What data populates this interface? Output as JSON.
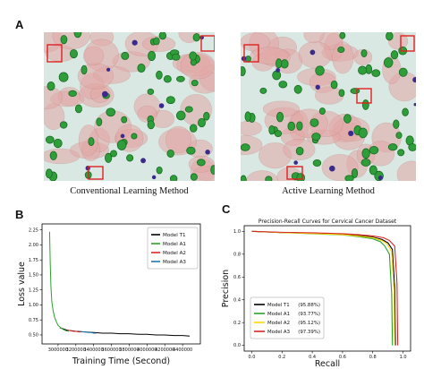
{
  "panels": {
    "a": {
      "letter": "A",
      "left_caption": "Conventional Learning Method",
      "right_caption": "Active Learning Method"
    },
    "b": {
      "letter": "B"
    },
    "c": {
      "letter": "C"
    }
  },
  "colors": {
    "background_tissue": "#d9e8e3",
    "cell_pink": "#e3a8a6",
    "nucleus_green": "#2f9e3a",
    "nucleus_blue": "#3a2a8c",
    "highlight_box": "#e02020"
  },
  "chart_data": [
    {
      "type": "line",
      "title": "",
      "xlabel": "Training Time (Second)",
      "ylabel": "Loss value",
      "xlim": [
        2820000,
        4600000
      ],
      "ylim": [
        0.35,
        2.35
      ],
      "x_ticks": [
        3000000,
        3200000,
        3400000,
        3600000,
        3800000,
        4000000,
        4200000,
        4400000
      ],
      "x_tick_labels": [
        "3000000",
        "3200000",
        "3400000",
        "3600000",
        "3800000",
        "4000000",
        "4200000",
        "4400000"
      ],
      "y_ticks": [
        0.5,
        0.75,
        1.0,
        1.25,
        1.5,
        1.75,
        2.0,
        2.25
      ],
      "y_tick_labels": [
        "0.50",
        "0.75",
        "1.00",
        "1.25",
        "1.50",
        "1.75",
        "2.00",
        "2.25"
      ],
      "legend_position": "top-right",
      "series": [
        {
          "name": "Model T1",
          "color": "#000000",
          "x": [
            3020000,
            3100000,
            3200000,
            3300000,
            3400000,
            3500000,
            3600000,
            3700000,
            3800000,
            3900000,
            4000000,
            4100000,
            4200000,
            4300000,
            4400000,
            4480000
          ],
          "y": [
            0.62,
            0.58,
            0.56,
            0.55,
            0.54,
            0.53,
            0.53,
            0.52,
            0.52,
            0.51,
            0.51,
            0.5,
            0.5,
            0.49,
            0.49,
            0.48
          ]
        },
        {
          "name": "Model A1",
          "color": "#2ca02c",
          "x": [
            2905000,
            2912000,
            2920000,
            2930000,
            2945000,
            2960000,
            2980000,
            3000000,
            3030000,
            3060000,
            3090000,
            3120000
          ],
          "y": [
            2.22,
            1.7,
            1.3,
            1.05,
            0.9,
            0.8,
            0.72,
            0.66,
            0.62,
            0.59,
            0.57,
            0.56
          ]
        },
        {
          "name": "Model A2",
          "color": "#d62728",
          "x": [
            3110000,
            3140000,
            3170000,
            3200000,
            3230000,
            3260000
          ],
          "y": [
            0.58,
            0.57,
            0.56,
            0.56,
            0.55,
            0.55
          ]
        },
        {
          "name": "Model A3",
          "color": "#1f77b4",
          "x": [
            3250000,
            3280000,
            3310000,
            3340000,
            3370000,
            3400000,
            3430000
          ],
          "y": [
            0.56,
            0.55,
            0.55,
            0.54,
            0.54,
            0.53,
            0.53
          ]
        }
      ]
    },
    {
      "type": "line",
      "title": "Precision-Recall Curves for Cervical Cancer Dataset",
      "xlabel": "Recall",
      "ylabel": "Precision",
      "xlim": [
        -0.05,
        1.05
      ],
      "ylim": [
        -0.05,
        1.05
      ],
      "x_ticks": [
        0.0,
        0.2,
        0.4,
        0.6,
        0.8,
        1.0
      ],
      "x_tick_labels": [
        "0.0",
        "0.2",
        "0.4",
        "0.6",
        "0.8",
        "1.0"
      ],
      "y_ticks": [
        0.0,
        0.2,
        0.4,
        0.6,
        0.8,
        1.0
      ],
      "y_tick_labels": [
        "0.0",
        "0.2",
        "0.4",
        "0.6",
        "0.8",
        "1.0"
      ],
      "legend_position": "bottom-left",
      "series": [
        {
          "name": "Model T1",
          "value_label": "(95.88%)",
          "color": "#000000",
          "x": [
            0.0,
            0.2,
            0.4,
            0.6,
            0.7,
            0.8,
            0.86,
            0.9,
            0.93,
            0.945,
            0.95
          ],
          "y": [
            1.0,
            0.99,
            0.985,
            0.975,
            0.965,
            0.95,
            0.93,
            0.9,
            0.84,
            0.5,
            0.0
          ]
        },
        {
          "name": "Model A1",
          "value_label": "(93.77%)",
          "color": "#2ca02c",
          "x": [
            0.0,
            0.2,
            0.4,
            0.6,
            0.7,
            0.8,
            0.85,
            0.88,
            0.91,
            0.925,
            0.93
          ],
          "y": [
            1.0,
            0.99,
            0.98,
            0.97,
            0.955,
            0.935,
            0.91,
            0.87,
            0.8,
            0.45,
            0.0
          ]
        },
        {
          "name": "Model A2",
          "value_label": "(95.12%)",
          "color": "#ffd700",
          "x": [
            0.0,
            0.2,
            0.4,
            0.6,
            0.7,
            0.8,
            0.86,
            0.895,
            0.925,
            0.94,
            0.945
          ],
          "y": [
            1.0,
            0.99,
            0.982,
            0.972,
            0.96,
            0.945,
            0.92,
            0.89,
            0.82,
            0.48,
            0.0
          ]
        },
        {
          "name": "Model A3",
          "value_label": "(97.39%)",
          "color": "#d62728",
          "x": [
            0.0,
            0.2,
            0.4,
            0.6,
            0.7,
            0.8,
            0.87,
            0.91,
            0.945,
            0.96,
            0.965
          ],
          "y": [
            1.0,
            0.992,
            0.988,
            0.98,
            0.972,
            0.96,
            0.945,
            0.92,
            0.87,
            0.55,
            0.0
          ]
        }
      ]
    }
  ]
}
